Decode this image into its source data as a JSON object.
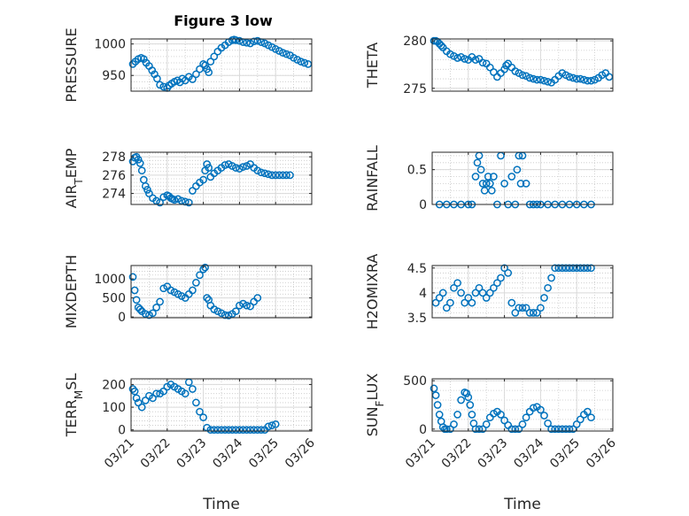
{
  "figure": {
    "title": "Figure 3 low",
    "background": "#ffffff"
  },
  "style": {
    "marker_color": "#0072BD",
    "axis_color": "#262626",
    "grid_color": "#c8c8c8"
  },
  "chart_data": [
    {
      "id": "pressure",
      "type": "scatter",
      "ylabel": "PRESSURE",
      "ylim": [
        925,
        1008
      ],
      "yticks": [
        950,
        1000
      ],
      "xlim": [
        0,
        5
      ],
      "xticks": [
        0,
        1,
        2,
        3,
        4,
        5
      ],
      "xticklabels": [],
      "grid": true,
      "x": [
        0.05,
        0.12,
        0.2,
        0.28,
        0.35,
        0.42,
        0.5,
        0.58,
        0.65,
        0.72,
        0.8,
        0.9,
        1.0,
        1.05,
        1.12,
        1.2,
        1.28,
        1.35,
        1.42,
        1.5,
        1.6,
        1.7,
        1.8,
        1.9,
        2.0,
        2.05,
        2.1,
        2.15,
        2.2,
        2.3,
        2.4,
        2.5,
        2.6,
        2.7,
        2.8,
        2.85,
        2.9,
        3.0,
        3.1,
        3.2,
        3.3,
        3.4,
        3.5,
        3.6,
        3.7,
        3.8,
        3.9,
        4.0,
        4.1,
        4.2,
        4.3,
        4.4,
        4.5,
        4.6,
        4.7,
        4.8,
        4.9
      ],
      "y": [
        968,
        972,
        976,
        978,
        976,
        970,
        965,
        958,
        952,
        945,
        935,
        932,
        930,
        934,
        937,
        940,
        942,
        939,
        945,
        942,
        948,
        944,
        952,
        960,
        968,
        966,
        960,
        955,
        972,
        980,
        988,
        994,
        998,
        1003,
        1006,
        1007,
        1006,
        1005,
        1003,
        1002,
        1001,
        1004,
        1005,
        1003,
        1001,
        998,
        995,
        992,
        989,
        986,
        984,
        982,
        978,
        975,
        972,
        970,
        968
      ]
    },
    {
      "id": "theta",
      "type": "scatter",
      "ylabel": "THETA",
      "ylim": [
        274.7,
        280.2
      ],
      "yticks": [
        275,
        280
      ],
      "xlim": [
        0,
        5
      ],
      "xticks": [
        0,
        1,
        2,
        3,
        4,
        5
      ],
      "xticklabels": [],
      "grid": true,
      "x": [
        0.05,
        0.1,
        0.15,
        0.2,
        0.25,
        0.3,
        0.4,
        0.5,
        0.6,
        0.7,
        0.8,
        0.9,
        1.0,
        1.1,
        1.2,
        1.3,
        1.4,
        1.5,
        1.6,
        1.7,
        1.8,
        1.9,
        2.0,
        2.05,
        2.1,
        2.2,
        2.3,
        2.4,
        2.5,
        2.6,
        2.7,
        2.8,
        2.9,
        3.0,
        3.1,
        3.2,
        3.3,
        3.4,
        3.5,
        3.6,
        3.7,
        3.8,
        3.9,
        4.0,
        4.1,
        4.2,
        4.3,
        4.4,
        4.5,
        4.6,
        4.7,
        4.8,
        4.9
      ],
      "y": [
        280,
        280,
        279.9,
        279.7,
        279.5,
        279.3,
        278.9,
        278.6,
        278.4,
        278.2,
        278.3,
        278.1,
        278.0,
        278.3,
        278.0,
        278.1,
        277.7,
        277.6,
        277.2,
        276.7,
        276.2,
        276.6,
        277.0,
        277.4,
        277.6,
        277.2,
        276.8,
        276.6,
        276.4,
        276.3,
        276.1,
        276.0,
        275.9,
        275.9,
        275.8,
        275.7,
        275.6,
        275.9,
        276.3,
        276.6,
        276.4,
        276.2,
        276.1,
        276.0,
        276.0,
        275.9,
        275.8,
        275.8,
        275.9,
        276.1,
        276.4,
        276.6,
        276.2
      ]
    },
    {
      "id": "air_temp",
      "type": "scatter",
      "ylabel": "AIR",
      "ylabel_sub": "T",
      "ylabel_suffix": "EMP",
      "ylim": [
        272.8,
        278.5
      ],
      "yticks": [
        274,
        276,
        278
      ],
      "xlim": [
        0,
        5
      ],
      "xticks": [
        0,
        1,
        2,
        3,
        4,
        5
      ],
      "xticklabels": [],
      "grid": true,
      "x": [
        0.05,
        0.1,
        0.15,
        0.2,
        0.25,
        0.3,
        0.35,
        0.4,
        0.45,
        0.5,
        0.6,
        0.7,
        0.8,
        0.9,
        1.0,
        1.05,
        1.1,
        1.15,
        1.2,
        1.3,
        1.4,
        1.5,
        1.6,
        1.7,
        1.8,
        1.9,
        2.0,
        2.05,
        2.1,
        2.15,
        2.2,
        2.3,
        2.4,
        2.5,
        2.6,
        2.7,
        2.8,
        2.9,
        3.0,
        3.1,
        3.2,
        3.3,
        3.4,
        3.5,
        3.6,
        3.7,
        3.8,
        3.9,
        4.0,
        4.1,
        4.2,
        4.3,
        4.4
      ],
      "y": [
        277.5,
        277.9,
        278.0,
        277.7,
        277.3,
        276.5,
        275.5,
        274.8,
        274.4,
        274.0,
        273.5,
        273.2,
        273.0,
        273.6,
        273.8,
        273.7,
        273.5,
        273.4,
        273.3,
        273.4,
        273.2,
        273.1,
        273.0,
        274.3,
        274.8,
        275.2,
        275.5,
        276.5,
        277.2,
        276.8,
        275.8,
        276.2,
        276.5,
        276.8,
        277.1,
        277.2,
        277.0,
        276.8,
        276.7,
        276.9,
        277.0,
        277.2,
        276.8,
        276.5,
        276.3,
        276.2,
        276.1,
        276.0,
        276.0,
        276.0,
        276.0,
        276.0,
        276.0
      ]
    },
    {
      "id": "rainfall",
      "type": "scatter",
      "ylabel": "RAINFALL",
      "ylim": [
        0,
        0.75
      ],
      "yticks": [
        0,
        0.5
      ],
      "xlim": [
        0,
        5
      ],
      "xticks": [
        0,
        1,
        2,
        3,
        4,
        5
      ],
      "xticklabels": [],
      "grid": true,
      "x": [
        0.2,
        0.4,
        0.6,
        0.8,
        1.0,
        1.1,
        1.2,
        1.25,
        1.3,
        1.35,
        1.4,
        1.45,
        1.5,
        1.55,
        1.6,
        1.65,
        1.7,
        1.8,
        1.9,
        2.0,
        2.1,
        2.2,
        2.3,
        2.35,
        2.4,
        2.45,
        2.5,
        2.6,
        2.7,
        2.8,
        2.9,
        3.0,
        3.2,
        3.4,
        3.6,
        3.8,
        4.0,
        4.2,
        4.4
      ],
      "y": [
        0,
        0,
        0,
        0,
        0,
        0,
        0.4,
        0.6,
        0.7,
        0.5,
        0.3,
        0.2,
        0.3,
        0.4,
        0.3,
        0.2,
        0.4,
        0,
        0.7,
        0.3,
        0,
        0.4,
        0,
        0.5,
        0.7,
        0.3,
        0.7,
        0.3,
        0,
        0,
        0,
        0,
        0,
        0,
        0,
        0,
        0,
        0,
        0
      ]
    },
    {
      "id": "mixdepth",
      "type": "scatter",
      "ylabel": "MIXDEPTH",
      "ylim": [
        -20,
        1350
      ],
      "yticks": [
        0,
        500,
        1000
      ],
      "xlim": [
        0,
        5
      ],
      "xticks": [
        0,
        1,
        2,
        3,
        4,
        5
      ],
      "xticklabels": [],
      "grid": true,
      "x": [
        0.05,
        0.1,
        0.15,
        0.2,
        0.25,
        0.3,
        0.4,
        0.5,
        0.6,
        0.7,
        0.8,
        0.9,
        1.0,
        1.1,
        1.2,
        1.3,
        1.4,
        1.5,
        1.6,
        1.7,
        1.8,
        1.9,
        2.0,
        2.05,
        2.1,
        2.15,
        2.2,
        2.3,
        2.4,
        2.5,
        2.6,
        2.7,
        2.8,
        2.9,
        3.0,
        3.1,
        3.2,
        3.3,
        3.4,
        3.5
      ],
      "y": [
        1050,
        700,
        450,
        250,
        200,
        150,
        80,
        50,
        100,
        250,
        400,
        750,
        800,
        700,
        650,
        600,
        550,
        500,
        600,
        700,
        900,
        1100,
        1250,
        1300,
        500,
        450,
        300,
        200,
        150,
        100,
        50,
        40,
        80,
        150,
        300,
        350,
        300,
        280,
        400,
        500
      ]
    },
    {
      "id": "h2omixra",
      "type": "scatter",
      "ylabel": "H2OMIXRA",
      "ylim": [
        3.5,
        4.55
      ],
      "yticks": [
        3.5,
        4,
        4.5
      ],
      "xlim": [
        0,
        5
      ],
      "xticks": [
        0,
        1,
        2,
        3,
        4,
        5
      ],
      "xticklabels": [],
      "grid": true,
      "x": [
        0.1,
        0.2,
        0.3,
        0.4,
        0.5,
        0.6,
        0.7,
        0.8,
        0.9,
        1.0,
        1.1,
        1.2,
        1.3,
        1.4,
        1.5,
        1.6,
        1.7,
        1.8,
        1.9,
        2.0,
        2.1,
        2.2,
        2.3,
        2.4,
        2.5,
        2.6,
        2.7,
        2.8,
        2.9,
        3.0,
        3.1,
        3.2,
        3.3,
        3.4,
        3.5,
        3.6,
        3.7,
        3.8,
        3.9,
        4.0,
        4.1,
        4.2,
        4.3,
        4.4
      ],
      "y": [
        3.8,
        3.9,
        4.0,
        3.7,
        3.8,
        4.1,
        4.2,
        4.0,
        3.8,
        3.9,
        3.8,
        4.0,
        4.1,
        4.0,
        3.9,
        4.0,
        4.1,
        4.2,
        4.3,
        4.5,
        4.4,
        3.8,
        3.6,
        3.7,
        3.7,
        3.7,
        3.6,
        3.6,
        3.6,
        3.7,
        3.9,
        4.1,
        4.3,
        4.5,
        4.5,
        4.5,
        4.5,
        4.5,
        4.5,
        4.5,
        4.5,
        4.5,
        4.5,
        4.5
      ]
    },
    {
      "id": "terr_msl",
      "type": "scatter",
      "ylabel": "TERR",
      "ylabel_sub": "M",
      "ylabel_suffix": "SL",
      "ylim": [
        -5,
        225
      ],
      "yticks": [
        0,
        100,
        200
      ],
      "xlim": [
        0,
        5
      ],
      "xticks": [
        0,
        1,
        2,
        3,
        4,
        5
      ],
      "xticklabels": [
        "03/21",
        "03/22",
        "03/23",
        "03/24",
        "03/25",
        "03/26"
      ],
      "xlabel": "Time",
      "grid": true,
      "x": [
        0.05,
        0.1,
        0.15,
        0.2,
        0.3,
        0.4,
        0.5,
        0.6,
        0.7,
        0.8,
        0.9,
        1.0,
        1.1,
        1.2,
        1.3,
        1.4,
        1.5,
        1.6,
        1.7,
        1.8,
        1.9,
        2.0,
        2.1,
        2.2,
        2.3,
        2.4,
        2.5,
        2.6,
        2.7,
        2.8,
        2.9,
        3.0,
        3.1,
        3.2,
        3.3,
        3.4,
        3.5,
        3.6,
        3.7,
        3.8,
        3.9,
        4.0
      ],
      "y": [
        180,
        170,
        140,
        120,
        100,
        130,
        150,
        140,
        160,
        160,
        170,
        190,
        200,
        190,
        180,
        170,
        160,
        210,
        180,
        120,
        80,
        55,
        10,
        0,
        0,
        0,
        0,
        0,
        0,
        0,
        0,
        0,
        0,
        0,
        0,
        0,
        0,
        0,
        0,
        15,
        20,
        25
      ]
    },
    {
      "id": "sun_flux",
      "type": "scatter",
      "ylabel": "SUN",
      "ylabel_sub": "F",
      "ylabel_suffix": "LUX",
      "ylim": [
        -20,
        520
      ],
      "yticks": [
        0,
        500
      ],
      "xlim": [
        0,
        5
      ],
      "xticks": [
        0,
        1,
        2,
        3,
        4,
        5
      ],
      "xticklabels": [
        "03/21",
        "03/22",
        "03/23",
        "03/24",
        "03/25",
        "03/26"
      ],
      "xlabel": "Time",
      "grid": true,
      "x": [
        0.05,
        0.1,
        0.15,
        0.2,
        0.25,
        0.3,
        0.35,
        0.4,
        0.5,
        0.6,
        0.7,
        0.8,
        0.9,
        0.95,
        1.0,
        1.05,
        1.1,
        1.15,
        1.2,
        1.3,
        1.4,
        1.5,
        1.6,
        1.7,
        1.8,
        1.9,
        2.0,
        2.1,
        2.2,
        2.3,
        2.4,
        2.5,
        2.6,
        2.7,
        2.8,
        2.9,
        3.0,
        3.1,
        3.2,
        3.3,
        3.4,
        3.5,
        3.6,
        3.7,
        3.8,
        3.9,
        4.0,
        4.1,
        4.2,
        4.3,
        4.4
      ],
      "y": [
        420,
        350,
        250,
        150,
        80,
        20,
        0,
        0,
        0,
        50,
        150,
        300,
        380,
        370,
        330,
        250,
        150,
        60,
        0,
        0,
        0,
        50,
        120,
        160,
        180,
        150,
        90,
        40,
        0,
        0,
        0,
        50,
        120,
        180,
        220,
        230,
        200,
        140,
        60,
        0,
        0,
        0,
        0,
        0,
        0,
        0,
        50,
        100,
        150,
        180,
        120
      ]
    }
  ]
}
